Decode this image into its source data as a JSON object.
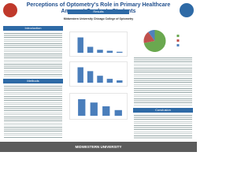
{
  "header": {
    "title": "Perceptions of Optometry's Role in Primary Healthcare Amongst Graduate Students",
    "institution": "Midwestern University Chicago College of Optometry"
  },
  "sections": {
    "introduction": "Introduction",
    "methods": "Methods",
    "results": "Results",
    "conclusion": "Conclusion"
  },
  "footer": {
    "logo": "MIDWESTERN UNIVERSITY"
  },
  "chart_data": [
    {
      "type": "bar",
      "categories": [
        null,
        null,
        null,
        null,
        null
      ],
      "values": [
        62,
        24,
        12,
        8,
        4
      ],
      "color": "#4a7ebb",
      "ylim": [
        0,
        70
      ]
    },
    {
      "type": "bar",
      "categories": [
        null,
        null,
        null,
        null,
        null
      ],
      "values": [
        40,
        30,
        18,
        10,
        6
      ],
      "color": "#4a7ebb",
      "ylim": [
        0,
        45
      ]
    },
    {
      "type": "bar",
      "categories": [
        null,
        null,
        null,
        null
      ],
      "values": [
        35,
        28,
        20,
        12
      ],
      "color": "#4a7ebb",
      "ylim": [
        0,
        40
      ]
    },
    {
      "type": "pie",
      "values": [
        72,
        18,
        10
      ],
      "colors": [
        "#6aa84f",
        "#c0504d",
        "#4f81bd"
      ]
    }
  ]
}
